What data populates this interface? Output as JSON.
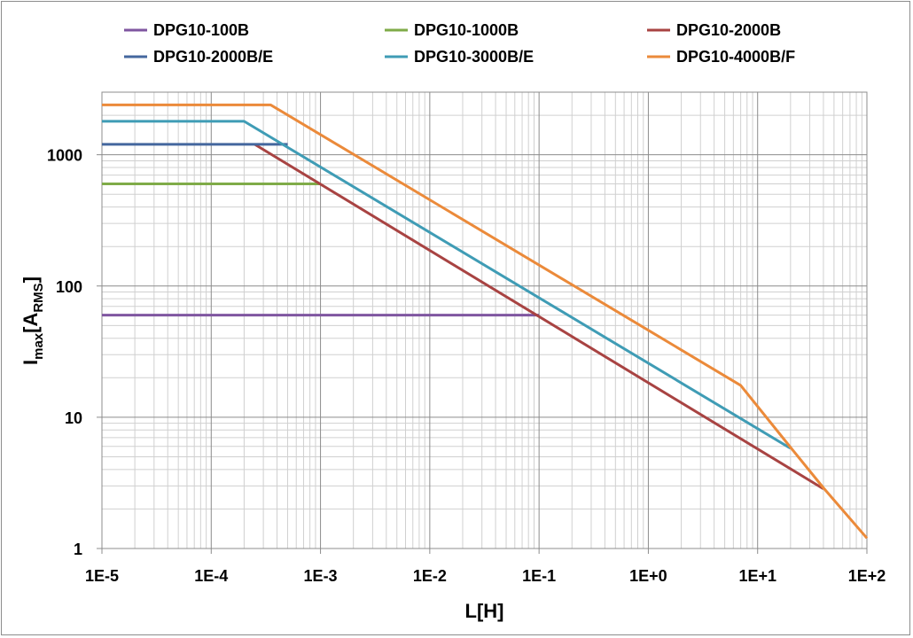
{
  "chart_data": {
    "type": "line",
    "x_scale": "log",
    "y_scale": "log",
    "xlabel": "L[H]",
    "ylabel": {
      "main": "I",
      "sub": "max",
      "bracket_open": "[A",
      "unit_sub": "RMS",
      "bracket_close": "]"
    },
    "xlim": [
      1e-05,
      100
    ],
    "ylim": [
      1,
      3000
    ],
    "x_ticks": [
      1e-05,
      0.0001,
      0.001,
      0.01,
      0.1,
      1,
      10,
      100
    ],
    "x_tick_labels": [
      "1E-5",
      "1E-4",
      "1E-3",
      "1E-2",
      "1E-1",
      "1E+0",
      "1E+1",
      "1E+2"
    ],
    "y_ticks": [
      1,
      10,
      100,
      1000
    ],
    "y_tick_labels": [
      "1",
      "10",
      "100",
      "1000"
    ],
    "grid": "major and minor",
    "legend_position": "top",
    "series": [
      {
        "name": "DPG10-100B",
        "color": "#7f56a0",
        "points": [
          [
            1e-05,
            60
          ],
          [
            0.1,
            60
          ]
        ]
      },
      {
        "name": "DPG10-1000B",
        "color": "#7fab48",
        "points": [
          [
            1e-05,
            600
          ],
          [
            0.001,
            600
          ]
        ]
      },
      {
        "name": "DPG10-2000B",
        "color": "#a84342",
        "points": [
          [
            0.00025,
            1200
          ],
          [
            40,
            2.85
          ]
        ]
      },
      {
        "name": "DPG10-2000B/E",
        "color": "#44679e",
        "points": [
          [
            1e-05,
            1200
          ],
          [
            0.0005,
            1200
          ]
        ]
      },
      {
        "name": "DPG10-3000B/E",
        "color": "#3f9cb5",
        "points": [
          [
            1e-05,
            1800
          ],
          [
            0.0002,
            1800
          ],
          [
            20,
            5.8
          ]
        ]
      },
      {
        "name": "DPG10-4000B/F",
        "color": "#eb8a3a",
        "points": [
          [
            1e-05,
            2400
          ],
          [
            0.00035,
            2400
          ],
          [
            7,
            17.5
          ],
          [
            20,
            5.9
          ],
          [
            40,
            2.9
          ],
          [
            100,
            1.2
          ]
        ]
      }
    ]
  }
}
